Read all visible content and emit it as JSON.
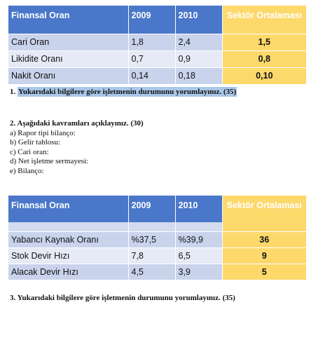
{
  "table1": {
    "headers": [
      "Finansal Oran",
      "2009",
      "2010",
      "Sektör Ortalaması"
    ],
    "rows": [
      [
        "Cari Oran",
        "1,8",
        "2,4",
        "1,5"
      ],
      [
        "Likidite Oranı",
        "0,7",
        "0,9",
        "0,8"
      ],
      [
        "Nakit Oranı",
        "0,14",
        "0,18",
        "0,10"
      ]
    ]
  },
  "question1": {
    "number": "1.",
    "text": "Yukarıdaki bilgilere göre işletmenin durumunu yorumlayınız. (35)"
  },
  "question2": {
    "title": "2. Aşağıdaki kavramları açıklayınız. (30)",
    "items": [
      "a) Rapor tipi bilanço:",
      "b) Gelir tablosu:",
      "c) Cari oran:",
      "d) Net işletme sermayesi:",
      "e) Bilanço:"
    ]
  },
  "table2": {
    "headers": [
      "Finansal Oran",
      "2009",
      "2010",
      "Sektör Ortalaması"
    ],
    "rows": [
      [
        "Yabancı Kaynak Oranı",
        "%37,5",
        "%39,9",
        "36"
      ],
      [
        "Stok Devir Hızı",
        "7,8",
        "6,5",
        "9"
      ],
      [
        "Alacak Devir Hızı",
        "4,5",
        "3,9",
        "5"
      ]
    ]
  },
  "question3": {
    "text": "3. Yukarıdaki bilgilere göre işletmenin durumunu yorumlayınız. (35)"
  },
  "colors": {
    "header_blue": "#4a77c9",
    "sector_yellow": "#fdd86b",
    "row_dark": "#c9d3ec",
    "row_light": "#e6eaf6",
    "highlight": "#a9c7e8"
  }
}
